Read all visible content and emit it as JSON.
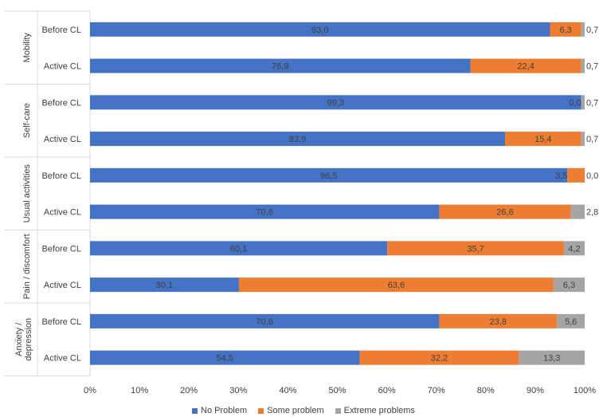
{
  "chart_data": {
    "type": "bar",
    "orientation": "horizontal",
    "stacked": "percent",
    "groups": [
      {
        "name": "Mobility",
        "rows": [
          {
            "label": "Before CL",
            "values": [
              93.0,
              6.3,
              0.7
            ],
            "value_labels": [
              "93,0",
              "6,3",
              "0,7"
            ]
          },
          {
            "label": "Active CL",
            "values": [
              76.9,
              22.4,
              0.7
            ],
            "value_labels": [
              "76,9",
              "22,4",
              "0,7"
            ]
          }
        ]
      },
      {
        "name": "Self-care",
        "rows": [
          {
            "label": "Before CL",
            "values": [
              99.3,
              0.0,
              0.7
            ],
            "value_labels": [
              "99,3",
              "0,0",
              "0,7"
            ]
          },
          {
            "label": "Active CL",
            "values": [
              83.9,
              15.4,
              0.7
            ],
            "value_labels": [
              "83,9",
              "15,4",
              "0,7"
            ]
          }
        ]
      },
      {
        "name": "Usual activities",
        "rows": [
          {
            "label": "Before CL",
            "values": [
              96.5,
              3.5,
              0.0
            ],
            "value_labels": [
              "96,5",
              "3,5",
              "0,0"
            ]
          },
          {
            "label": "Active CL",
            "values": [
              70.6,
              26.6,
              2.8
            ],
            "value_labels": [
              "70,6",
              "26,6",
              "2,8"
            ]
          }
        ]
      },
      {
        "name": "Pain / discomfort",
        "rows": [
          {
            "label": "Before CL",
            "values": [
              60.1,
              35.7,
              4.2
            ],
            "value_labels": [
              "60,1",
              "35,7",
              "4,2"
            ]
          },
          {
            "label": "Active CL",
            "values": [
              30.1,
              63.6,
              6.3
            ],
            "value_labels": [
              "30,1",
              "63,6",
              "6,3"
            ]
          }
        ]
      },
      {
        "name": "Anxiety / depression",
        "name_lines": [
          "Anxiety /",
          "depression"
        ],
        "rows": [
          {
            "label": "Before CL",
            "values": [
              70.6,
              23.8,
              5.6
            ],
            "value_labels": [
              "70,6",
              "23,8",
              "5,6"
            ]
          },
          {
            "label": "Active CL",
            "values": [
              54.5,
              32.2,
              13.3
            ],
            "value_labels": [
              "54,5",
              "32,2",
              "13,3"
            ]
          }
        ]
      }
    ],
    "series": [
      {
        "name": "No Problem",
        "color": "#4472C4"
      },
      {
        "name": "Some problem",
        "color": "#ED7D31"
      },
      {
        "name": "Extreme problems",
        "color": "#A5A5A5"
      }
    ],
    "xlim": [
      0,
      100
    ],
    "xticks": [
      "0%",
      "10%",
      "20%",
      "30%",
      "40%",
      "50%",
      "60%",
      "70%",
      "80%",
      "90%",
      "100%"
    ],
    "legend_position": "bottom",
    "title": "",
    "xlabel": "",
    "ylabel": ""
  }
}
